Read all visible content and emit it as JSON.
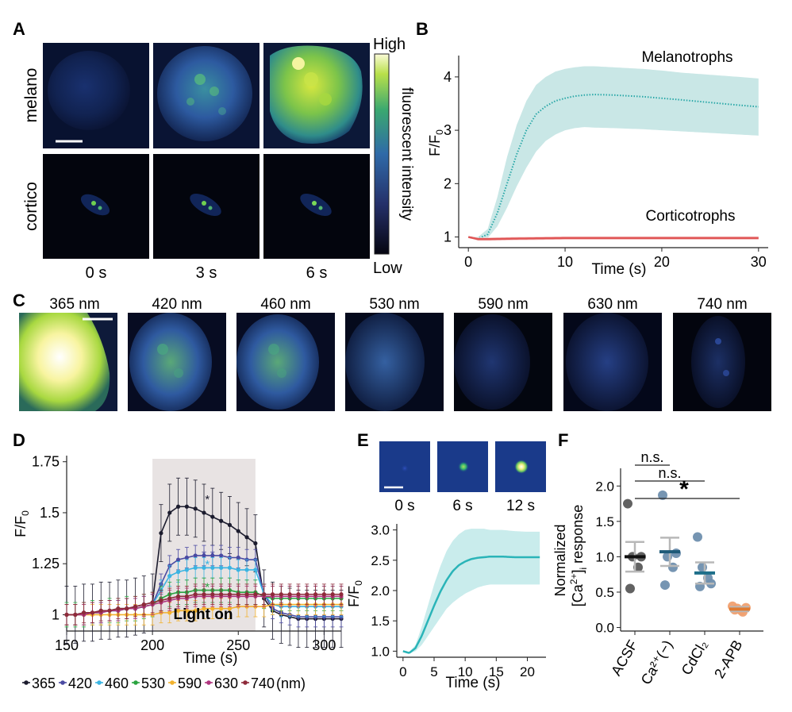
{
  "panels": {
    "A": {
      "label": "A",
      "row_labels": [
        "melano",
        "cortico"
      ],
      "time_labels": [
        "0 s",
        "3 s",
        "6 s"
      ],
      "colorbar": {
        "high": "High",
        "low": "Low",
        "title": "fluorescent intensity"
      }
    },
    "B": {
      "label": "B",
      "chart_data": {
        "type": "line",
        "xlabel": "Time (s)",
        "ylabel": "F/F",
        "ylabel_sub": "0",
        "xlim": [
          -1,
          31
        ],
        "ylim": [
          0.8,
          4.4
        ],
        "xticks": [
          0,
          10,
          20,
          30
        ],
        "yticks": [
          1,
          2,
          3,
          4
        ],
        "series": [
          {
            "name": "Melanotrophs",
            "color": "#2aa8a8",
            "band": "#c9e7e6",
            "x": [
              0,
              1,
              2,
              3,
              4,
              5,
              6,
              7,
              8,
              9,
              10,
              11,
              12,
              13,
              15,
              18,
              20,
              22,
              25,
              28,
              30
            ],
            "y": [
              1.0,
              0.97,
              1.05,
              1.45,
              2.0,
              2.55,
              3.0,
              3.3,
              3.45,
              3.55,
              3.6,
              3.64,
              3.66,
              3.67,
              3.66,
              3.63,
              3.6,
              3.57,
              3.52,
              3.47,
              3.44
            ],
            "lower": [
              1.0,
              0.95,
              0.98,
              1.2,
              1.55,
              1.95,
              2.3,
              2.6,
              2.8,
              2.92,
              3.0,
              3.04,
              3.06,
              3.05,
              3.04,
              3.02,
              3.0,
              2.98,
              2.95,
              2.92,
              2.9
            ],
            "upper": [
              1.0,
              1.0,
              1.15,
              1.75,
              2.5,
              3.1,
              3.55,
              3.85,
              4.0,
              4.1,
              4.15,
              4.18,
              4.2,
              4.2,
              4.18,
              4.15,
              4.12,
              4.08,
              4.04,
              4.0,
              3.97
            ]
          },
          {
            "name": "Corticotrophs",
            "color": "#e05555",
            "band": "#f6c9c9",
            "x": [
              0,
              1,
              2,
              5,
              10,
              15,
              20,
              25,
              30
            ],
            "y": [
              1.0,
              0.96,
              0.96,
              0.97,
              0.98,
              0.98,
              0.98,
              0.98,
              0.98
            ],
            "lower": [
              0.99,
              0.93,
              0.93,
              0.94,
              0.95,
              0.95,
              0.95,
              0.95,
              0.95
            ],
            "upper": [
              1.01,
              0.99,
              0.99,
              1.0,
              1.01,
              1.01,
              1.01,
              1.01,
              1.01
            ]
          }
        ]
      }
    },
    "C": {
      "label": "C",
      "wavelengths": [
        "365 nm",
        "420 nm",
        "460 nm",
        "530 nm",
        "590 nm",
        "630 nm",
        "740 nm"
      ]
    },
    "D": {
      "label": "D",
      "chart_data": {
        "type": "line",
        "xlabel": "Time (s)",
        "ylabel": "F/F",
        "ylabel_sub": "0",
        "xlim": [
          150,
          310
        ],
        "ylim": [
          0.92,
          1.78
        ],
        "xticks": [
          150,
          200,
          250,
          300
        ],
        "yticks": [
          1,
          1.25,
          1.5,
          1.75
        ],
        "ytick_labels": [
          "1",
          "1.25",
          "1.5",
          "1.75"
        ],
        "shade": {
          "x0": 200,
          "x1": 260,
          "label": "Light on",
          "color": "#e8e3e3"
        },
        "legend_suffix": "(nm)",
        "x": [
          150,
          155,
          160,
          165,
          170,
          175,
          180,
          185,
          190,
          195,
          200,
          205,
          210,
          215,
          220,
          225,
          230,
          235,
          240,
          245,
          250,
          255,
          260,
          265,
          270,
          275,
          280,
          285,
          290,
          295,
          300,
          305,
          310
        ],
        "series": [
          {
            "name": "365",
            "color": "#1c1c2e",
            "err": 0.14,
            "values": [
              1.0,
              1.0,
              1.01,
              1.01,
              1.02,
              1.02,
              1.03,
              1.03,
              1.04,
              1.05,
              1.06,
              1.4,
              1.5,
              1.53,
              1.53,
              1.52,
              1.5,
              1.48,
              1.46,
              1.44,
              1.41,
              1.38,
              1.35,
              1.08,
              1.02,
              1.0,
              0.99,
              0.98,
              0.98,
              0.98,
              0.98,
              0.98,
              0.98
            ]
          },
          {
            "name": "420",
            "color": "#4a4aa2",
            "err": 0.05,
            "values": [
              1.0,
              1.0,
              1.0,
              1.01,
              1.01,
              1.02,
              1.02,
              1.03,
              1.03,
              1.04,
              1.05,
              1.15,
              1.24,
              1.27,
              1.28,
              1.29,
              1.29,
              1.29,
              1.29,
              1.28,
              1.28,
              1.27,
              1.27,
              1.1,
              1.03,
              1.01,
              1.0,
              0.99,
              0.99,
              0.99,
              0.99,
              0.99,
              0.99
            ]
          },
          {
            "name": "460",
            "color": "#3ab4e2",
            "err": 0.05,
            "values": [
              1.0,
              1.0,
              1.0,
              1.01,
              1.01,
              1.02,
              1.02,
              1.03,
              1.03,
              1.04,
              1.05,
              1.12,
              1.19,
              1.21,
              1.22,
              1.23,
              1.23,
              1.23,
              1.23,
              1.23,
              1.22,
              1.22,
              1.22,
              1.1,
              1.05,
              1.04,
              1.04,
              1.04,
              1.04,
              1.04,
              1.04,
              1.04,
              1.04
            ]
          },
          {
            "name": "530",
            "color": "#2aa340",
            "err": 0.06,
            "values": [
              1.0,
              1.0,
              1.0,
              1.01,
              1.01,
              1.02,
              1.02,
              1.03,
              1.03,
              1.04,
              1.05,
              1.08,
              1.1,
              1.11,
              1.11,
              1.12,
              1.12,
              1.12,
              1.12,
              1.12,
              1.11,
              1.11,
              1.11,
              1.09,
              1.08,
              1.08,
              1.08,
              1.08,
              1.08,
              1.08,
              1.08,
              1.08,
              1.08
            ]
          },
          {
            "name": "590",
            "color": "#f2b22e",
            "err": 0.05,
            "values": [
              1.0,
              1.0,
              1.0,
              1.0,
              1.0,
              1.0,
              1.0,
              1.0,
              1.0,
              1.0,
              1.0,
              1.01,
              1.01,
              1.02,
              1.02,
              1.02,
              1.03,
              1.03,
              1.03,
              1.03,
              1.04,
              1.04,
              1.04,
              1.04,
              1.05,
              1.05,
              1.05,
              1.05,
              1.05,
              1.05,
              1.05,
              1.05,
              1.05
            ]
          },
          {
            "name": "630",
            "color": "#b0357f",
            "err": 0.05,
            "values": [
              1.0,
              1.0,
              1.0,
              1.01,
              1.01,
              1.02,
              1.02,
              1.03,
              1.03,
              1.04,
              1.05,
              1.06,
              1.07,
              1.08,
              1.08,
              1.09,
              1.09,
              1.09,
              1.09,
              1.09,
              1.09,
              1.09,
              1.09,
              1.09,
              1.09,
              1.09,
              1.09,
              1.09,
              1.09,
              1.09,
              1.09,
              1.09,
              1.09
            ]
          },
          {
            "name": "740",
            "color": "#8e2a3a",
            "err": 0.05,
            "values": [
              1.0,
              1.0,
              1.01,
              1.01,
              1.02,
              1.02,
              1.03,
              1.03,
              1.04,
              1.05,
              1.06,
              1.07,
              1.08,
              1.09,
              1.09,
              1.1,
              1.1,
              1.1,
              1.1,
              1.1,
              1.1,
              1.1,
              1.1,
              1.1,
              1.1,
              1.1,
              1.1,
              1.1,
              1.1,
              1.1,
              1.1,
              1.1,
              1.1
            ]
          }
        ],
        "stars": [
          {
            "x": 232,
            "y": 1.57,
            "color": "#1c1c2e"
          },
          {
            "x": 230,
            "y": 1.3,
            "color": "#4a4aa2"
          },
          {
            "x": 235,
            "y": 1.3,
            "color": "#4a4aa2"
          },
          {
            "x": 232,
            "y": 1.25,
            "color": "#3ab4e2"
          },
          {
            "x": 232,
            "y": 1.14,
            "color": "#2aa340"
          }
        ]
      }
    },
    "E": {
      "label": "E",
      "time_labels": [
        "0 s",
        "6 s",
        "12 s"
      ],
      "chart_data": {
        "type": "line",
        "xlabel": "Time (s)",
        "ylabel": "F/F",
        "ylabel_sub": "0",
        "xlim": [
          -1,
          23
        ],
        "ylim": [
          0.9,
          3.1
        ],
        "xticks": [
          0,
          5,
          10,
          15,
          20
        ],
        "yticks": [
          1.0,
          1.5,
          2.0,
          2.5,
          3.0
        ],
        "ytick_labels": [
          "1.0",
          "1.5",
          "2.0",
          "2.5",
          "3.0"
        ],
        "series": [
          {
            "name": "",
            "color": "#2ab4b8",
            "band": "#c9ecec",
            "x": [
              0,
              1,
              2,
              3,
              4,
              5,
              6,
              7,
              8,
              9,
              10,
              11,
              12,
              13,
              14,
              15,
              16,
              18,
              20,
              22
            ],
            "y": [
              1.0,
              0.97,
              1.05,
              1.25,
              1.5,
              1.75,
              1.98,
              2.17,
              2.32,
              2.42,
              2.48,
              2.52,
              2.54,
              2.55,
              2.56,
              2.56,
              2.56,
              2.55,
              2.55,
              2.55
            ],
            "lower": [
              1.0,
              0.96,
              1.0,
              1.1,
              1.25,
              1.4,
              1.55,
              1.7,
              1.8,
              1.88,
              1.95,
              2.0,
              2.05,
              2.08,
              2.1,
              2.1,
              2.1,
              2.1,
              2.1,
              2.1
            ],
            "upper": [
              1.0,
              0.99,
              1.1,
              1.4,
              1.75,
              2.1,
              2.4,
              2.65,
              2.82,
              2.93,
              3.0,
              3.02,
              3.02,
              3.02,
              3.0,
              3.0,
              3.0,
              2.98,
              2.97,
              2.97
            ]
          }
        ]
      }
    },
    "F": {
      "label": "F",
      "chart_data": {
        "type": "scatter",
        "ylabel_line1": "Normalized",
        "ylabel_line2": "response",
        "ylim": [
          -0.05,
          2.25
        ],
        "yticks": [
          0.0,
          0.5,
          1.0,
          1.5,
          2.0
        ],
        "ytick_labels": [
          "0.0",
          "0.5",
          "1.0",
          "1.5",
          "2.0"
        ],
        "categories": [
          "ACSF",
          "Ca²⁺(−)",
          "CdCl₂",
          "2-APB"
        ],
        "groups": [
          {
            "name": "ACSF",
            "color": "#5a5a5a",
            "mean_color": "#111111",
            "mean": 1.0,
            "sem": 0.21,
            "points": [
              1.75,
              1.0,
              0.85,
              0.55,
              1.0
            ]
          },
          {
            "name": "Ca²⁺(−)",
            "color": "#6f8fae",
            "mean_color": "#1e5a78",
            "mean": 1.07,
            "sem": 0.2,
            "points": [
              1.87,
              1.0,
              0.85,
              0.6,
              1.05
            ]
          },
          {
            "name": "CdCl₂",
            "color": "#6f8fae",
            "mean_color": "#1e6f8a",
            "mean": 0.77,
            "sem": 0.15,
            "points": [
              1.28,
              0.85,
              0.7,
              0.58,
              0.62
            ]
          },
          {
            "name": "2-APB",
            "color": "#f0a070",
            "mean_color": "#e07a30",
            "mean": 0.26,
            "sem": 0.03,
            "points": [
              0.3,
              0.27,
              0.22,
              0.25,
              0.28,
              0.24
            ]
          }
        ],
        "significance": [
          {
            "from": 0,
            "to": 1,
            "label": "n.s."
          },
          {
            "from": 0,
            "to": 2,
            "label": "n.s."
          },
          {
            "from": 0,
            "to": 3,
            "label": "*"
          }
        ]
      }
    }
  }
}
